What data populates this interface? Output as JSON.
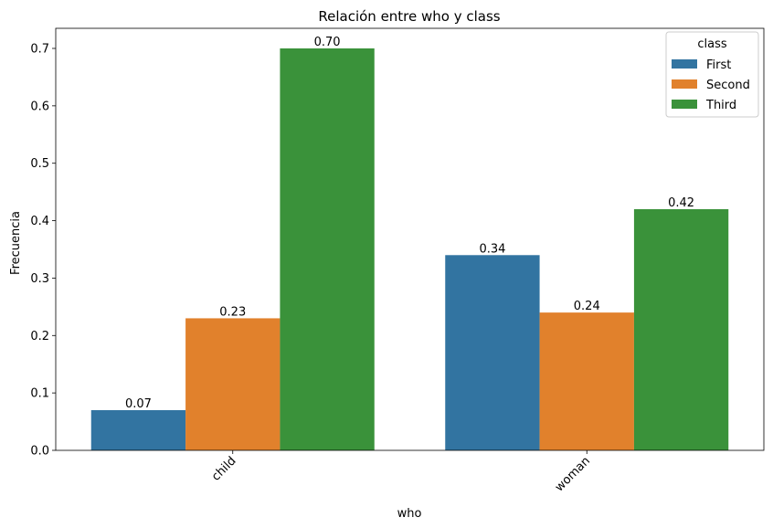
{
  "chart_data": {
    "type": "bar",
    "title": "Relación entre who y class",
    "xlabel": "who",
    "ylabel": "Frecuencia",
    "categories": [
      "child",
      "woman"
    ],
    "series": [
      {
        "name": "First",
        "values": [
          0.07,
          0.34
        ],
        "labels": [
          "0.07",
          "0.34"
        ],
        "color": "#3274a1"
      },
      {
        "name": "Second",
        "values": [
          0.23,
          0.24
        ],
        "labels": [
          "0.23",
          "0.24"
        ],
        "color": "#e1812c"
      },
      {
        "name": "Third",
        "values": [
          0.7,
          0.42
        ],
        "labels": [
          "0.70",
          "0.42"
        ],
        "color": "#3a923a"
      }
    ],
    "ylim": [
      0,
      0.735
    ],
    "yticks": [
      0.0,
      0.1,
      0.2,
      0.3,
      0.4,
      0.5,
      0.6,
      0.7
    ],
    "ytick_labels": [
      "0.0",
      "0.1",
      "0.2",
      "0.3",
      "0.4",
      "0.5",
      "0.6",
      "0.7"
    ],
    "xtick_rotation": 45,
    "grid": false,
    "legend": {
      "title": "class",
      "position": "top-right"
    }
  }
}
